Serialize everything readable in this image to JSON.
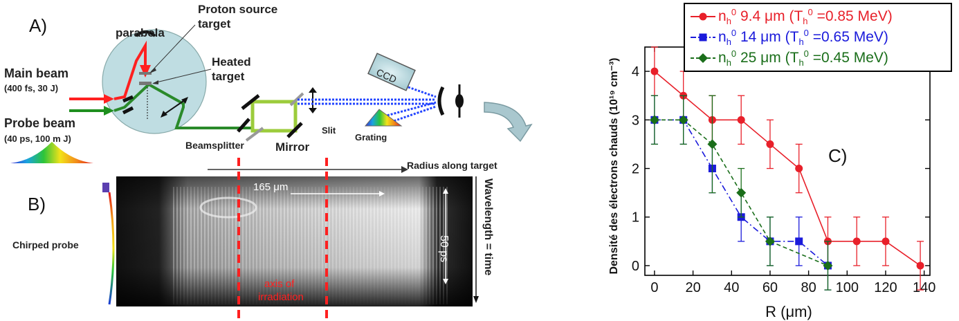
{
  "panel_a": {
    "letter": "A)",
    "parabola": "parabola",
    "proton_source_line1": "Proton source",
    "proton_source_line2": "target",
    "heated_line1": "Heated",
    "heated_line2": "target",
    "main_beam": "Main beam",
    "main_beam_params": "(400 fs, 30 J)",
    "probe_beam": "Probe beam",
    "probe_beam_params": "(40 ps, 100 m J)",
    "beamsplitter": "Beamsplitter",
    "mirror": "Mirror",
    "slit": "Slit",
    "grating": "Grating",
    "ccd": "CCD",
    "radius_along_target": "Radius along target",
    "colors": {
      "main_beam": "#ff2020",
      "probe_beam": "#1e8f1e",
      "path": "#2a8a2a",
      "dashed": "#2244ff",
      "chamber": "#bfdde2"
    }
  },
  "panel_b": {
    "letter": "B)",
    "chirped_probe": "Chirped probe",
    "distance_label": "165 μm",
    "time_label": "50 ps",
    "axis_label_line1": "axis of",
    "axis_label_line2": "irradiation",
    "side_axis": "Wavelength = time",
    "colors": {
      "irradiation": "#ff2020"
    }
  },
  "panel_c": {
    "letter": "C)"
  },
  "chart_data": {
    "type": "line",
    "xlabel": "R (μm)",
    "ylabel": "Densité des électrons chauds (10¹⁹ cm⁻³)",
    "xlim": [
      -5,
      143
    ],
    "ylim": [
      -0.2,
      4.5
    ],
    "xticks": [
      0,
      20,
      40,
      60,
      80,
      100,
      120,
      140
    ],
    "yticks": [
      0,
      1,
      2,
      3,
      4
    ],
    "legend_position": "top-right",
    "series": [
      {
        "name": "nₕ⁰ 9.4 μm (Tₕ⁰ =0.85 MeV)",
        "legend_main": "n",
        "legend_sub": "h",
        "legend_sup": "0",
        "legend_mid": " 9.4 μm (T",
        "legend_sub2": "h",
        "legend_sup2": "0",
        "legend_end": " =0.85 MeV)",
        "color": "#e8202a",
        "marker": "circle",
        "line_style": "solid",
        "x": [
          0,
          15,
          30,
          45,
          60,
          75,
          90,
          105,
          120,
          138
        ],
        "y": [
          4.0,
          3.5,
          3.0,
          3.0,
          2.5,
          2.0,
          0.5,
          0.5,
          0.5,
          0.0
        ],
        "err": [
          0.5,
          0.5,
          0.5,
          0.5,
          0.5,
          0.5,
          0.5,
          0.5,
          0.5,
          0.5
        ]
      },
      {
        "name": "nₕ⁰ 14 μm (Tₕ⁰ =0.65 MeV)",
        "legend_main": "n",
        "legend_sub": "h",
        "legend_sup": "0",
        "legend_mid": " 14 μm (T",
        "legend_sub2": "h",
        "legend_sup2": "0",
        "legend_end": " =0.65 MeV)",
        "color": "#1a1adb",
        "marker": "square",
        "line_style": "dashdot",
        "x": [
          0,
          15,
          30,
          45,
          60,
          75,
          90
        ],
        "y": [
          3.0,
          3.0,
          2.0,
          1.0,
          0.5,
          0.5,
          0.0
        ],
        "err": [
          0.5,
          0.5,
          0.5,
          0.5,
          0.5,
          0.5,
          0.5
        ]
      },
      {
        "name": "nₕ⁰ 25 μm (Tₕ⁰ =0.45 MeV)",
        "legend_main": "n",
        "legend_sub": "h",
        "legend_sup": "0",
        "legend_mid": " 25 μm (T",
        "legend_sub2": "h",
        "legend_sup2": "0",
        "legend_end": " =0.45 MeV)",
        "color": "#1a6e1a",
        "marker": "diamond",
        "line_style": "dashed",
        "x": [
          0,
          15,
          30,
          45,
          60,
          90
        ],
        "y": [
          3.0,
          3.0,
          2.5,
          1.5,
          0.5,
          0.0
        ],
        "err": [
          0.5,
          0.5,
          1.0,
          0.5,
          0.5,
          0.5
        ]
      }
    ]
  }
}
